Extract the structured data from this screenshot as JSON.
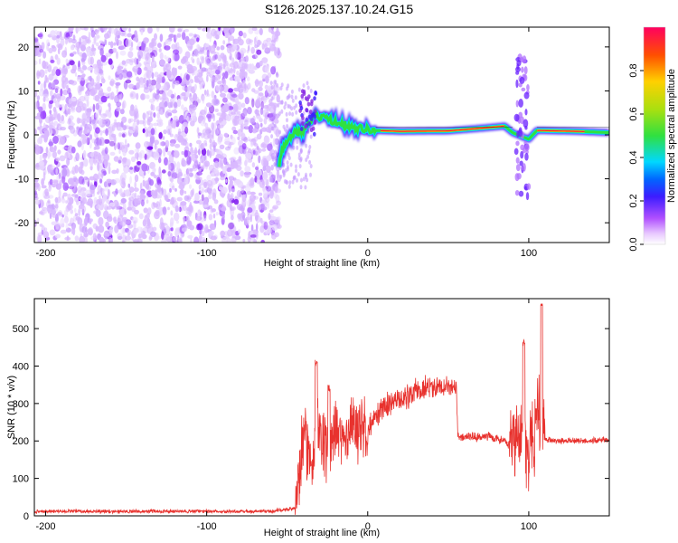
{
  "figure": {
    "title": "S126.2025.137.10.24.G15"
  },
  "colors": {
    "snr_line": "#e8322e",
    "scatter_purple": "#8a2be2",
    "axis": "#000000",
    "white": "#ffffff"
  },
  "chart_data": [
    {
      "id": "spectrogram",
      "type": "heatmap",
      "title": "S126.2025.137.10.24.G15",
      "xlabel": "Height of straight line (km)",
      "ylabel": "Frequency (Hz)",
      "xlim": [
        -207,
        150
      ],
      "ylim": [
        -24.5,
        24.5
      ],
      "xticks": [
        -200,
        -100,
        0,
        100
      ],
      "yticks": [
        -20,
        -10,
        0,
        10,
        20
      ],
      "colorbar": {
        "label": "Normalized spectral amplitude",
        "range": [
          0,
          1
        ],
        "ticks": [
          0.0,
          0.2,
          0.4,
          0.6,
          0.8
        ],
        "colormap": "rainbow (magenta → blue → cyan → green → yellow → red)"
      },
      "noise_region": {
        "x_range": [
          -207,
          -55
        ],
        "y_range": [
          -24.5,
          24.5
        ],
        "amplitude_range": [
          0.0,
          0.1
        ]
      },
      "signal_ridge": [
        {
          "x": -55,
          "y": -6.5
        },
        {
          "x": -52,
          "y": -2
        },
        {
          "x": -45,
          "y": 0.5
        },
        {
          "x": -40,
          "y": 0.8
        },
        {
          "x": -33,
          "y": 4.5
        },
        {
          "x": -25,
          "y": 3.5
        },
        {
          "x": -15,
          "y": 2.5
        },
        {
          "x": -5,
          "y": 1.5
        },
        {
          "x": 5,
          "y": 1.0
        },
        {
          "x": 20,
          "y": 0.8
        },
        {
          "x": 50,
          "y": 0.9
        },
        {
          "x": 70,
          "y": 1.5
        },
        {
          "x": 85,
          "y": 2.0
        },
        {
          "x": 90,
          "y": 0.5
        },
        {
          "x": 100,
          "y": -1
        },
        {
          "x": 105,
          "y": 1.0
        },
        {
          "x": 130,
          "y": 0.8
        },
        {
          "x": 150,
          "y": 0.5
        }
      ]
    },
    {
      "id": "snr",
      "type": "line",
      "xlabel": "Height of straight line (km)",
      "ylabel": "SNR (10 * v/v)",
      "xlim": [
        -207,
        150
      ],
      "ylim": [
        0,
        580
      ],
      "xticks": [
        -200,
        -100,
        0,
        100
      ],
      "yticks": [
        0,
        100,
        200,
        300,
        400,
        500
      ],
      "series": [
        {
          "x": [
            -207,
            -150,
            -100,
            -60,
            -45,
            -40,
            -35,
            -30,
            -25,
            -20,
            -15,
            -10,
            -5,
            0,
            5,
            10,
            15,
            20,
            25,
            30,
            35,
            40,
            45,
            50,
            55,
            56,
            60,
            65,
            70,
            75,
            80,
            85,
            90,
            95,
            100,
            105,
            108,
            110,
            115,
            120,
            130,
            140,
            150
          ],
          "y": [
            12,
            12,
            12,
            12,
            20,
            200,
            150,
            230,
            160,
            230,
            200,
            240,
            240,
            220,
            270,
            290,
            300,
            310,
            320,
            330,
            340,
            345,
            345,
            350,
            345,
            210,
            210,
            210,
            210,
            215,
            205,
            200,
            180,
            230,
            150,
            250,
            280,
            205,
            200,
            200,
            200,
            200,
            205
          ]
        }
      ],
      "spikes": [
        {
          "x": -32,
          "y": 420
        },
        {
          "x": -24,
          "y": 350
        },
        {
          "x": 97,
          "y": 470
        },
        {
          "x": 108,
          "y": 580
        }
      ]
    }
  ]
}
